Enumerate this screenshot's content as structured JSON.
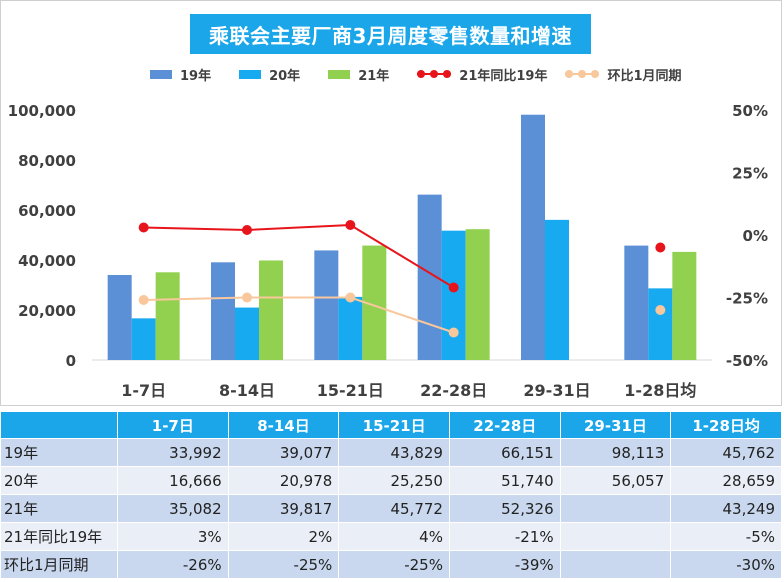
{
  "title": "乘联会主要厂商3月周度零售数量和增速",
  "legend": {
    "s19": "19年",
    "s20": "20年",
    "s21": "21年",
    "yoy": "21年同比19年",
    "mom": "环比1月同期"
  },
  "colors": {
    "s19": "#5b8fd6",
    "s20": "#18aaf0",
    "s21": "#92d050",
    "yoy": "#e8141b",
    "mom": "#f8c79b",
    "header": "#1aa6e8"
  },
  "chart_data": {
    "type": "bar",
    "categories": [
      "1-7日",
      "8-14日",
      "15-21日",
      "22-28日",
      "29-31日",
      "1-28日均"
    ],
    "series": [
      {
        "name": "19年",
        "values": [
          33992,
          39077,
          43829,
          66151,
          98113,
          45762
        ]
      },
      {
        "name": "20年",
        "values": [
          16666,
          20978,
          25250,
          51740,
          56057,
          28659
        ]
      },
      {
        "name": "21年",
        "values": [
          35082,
          39817,
          45772,
          52326,
          null,
          43249
        ]
      }
    ],
    "line_series": [
      {
        "name": "21年同比19年",
        "axis": "right",
        "values": [
          3,
          2,
          4,
          -21,
          null,
          -5
        ]
      },
      {
        "name": "环比1月同期",
        "axis": "right",
        "values": [
          -26,
          -25,
          -25,
          -39,
          null,
          -30
        ]
      }
    ],
    "ylim": [
      0,
      100000
    ],
    "y_ticks": [
      "0",
      "20,000",
      "40,000",
      "60,000",
      "80,000",
      "100,000"
    ],
    "y2lim": [
      -50,
      50
    ],
    "y2_ticks": [
      "-50%",
      "-25%",
      "0%",
      "25%",
      "50%"
    ],
    "legend_position": "top",
    "grid": false
  },
  "table": {
    "headers": [
      "",
      "1-7日",
      "8-14日",
      "15-21日",
      "22-28日",
      "29-31日",
      "1-28日均"
    ],
    "rows": [
      {
        "label": "19年",
        "cells": [
          "33,992",
          "39,077",
          "43,829",
          "66,151",
          "98,113",
          "45,762"
        ]
      },
      {
        "label": "20年",
        "cells": [
          "16,666",
          "20,978",
          "25,250",
          "51,740",
          "56,057",
          "28,659"
        ]
      },
      {
        "label": "21年",
        "cells": [
          "35,082",
          "39,817",
          "45,772",
          "52,326",
          "",
          "43,249"
        ]
      },
      {
        "label": "21年同比19年",
        "cells": [
          "3%",
          "2%",
          "4%",
          "-21%",
          "",
          "-5%"
        ]
      },
      {
        "label": "环比1月同期",
        "cells": [
          "-26%",
          "-25%",
          "-25%",
          "-39%",
          "",
          "-30%"
        ]
      }
    ]
  }
}
